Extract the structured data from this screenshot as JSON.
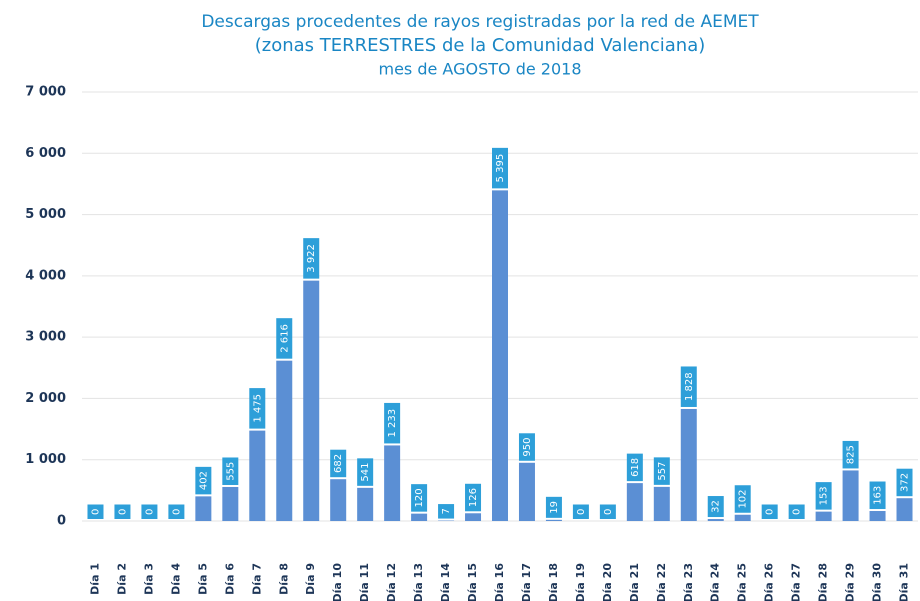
{
  "chart_data": {
    "type": "bar",
    "title": "Descargas procedentes de rayos registradas por la red de AEMET",
    "subtitle": [
      "(zonas TERRESTRES  de la Comunidad Valenciana)",
      "mes de AGOSTO de 2018"
    ],
    "categories": [
      "Día 1",
      "Día 2",
      "Día 3",
      "Día 4",
      "Día 5",
      "Día 6",
      "Día 7",
      "Día 8",
      "Día 9",
      "Día 10",
      "Día 11",
      "Día 12",
      "Día 13",
      "Día 14",
      "Día 15",
      "Día 16",
      "Día 17",
      "Día 18",
      "Día 19",
      "Día 20",
      "Día 21",
      "Día 22",
      "Día 23",
      "Día 24",
      "Día 25",
      "Día 26",
      "Día 27",
      "Día 28",
      "Día 29",
      "Día 30",
      "Día 31"
    ],
    "values": [
      0,
      0,
      0,
      0,
      402,
      555,
      1475,
      2616,
      3922,
      682,
      541,
      1233,
      120,
      7,
      126,
      5395,
      950,
      19,
      0,
      0,
      618,
      557,
      1828,
      32,
      102,
      0,
      0,
      153,
      825,
      163,
      372
    ],
    "value_labels": [
      "0",
      "0",
      "0",
      "0",
      "402",
      "555",
      "1 475",
      "2 616",
      "3 922",
      "682",
      "541",
      "1 233",
      "120",
      "7",
      "126",
      "5 395",
      "950",
      "19",
      "0",
      "0",
      "618",
      "557",
      "1 828",
      "32",
      "102",
      "0",
      "0",
      "153",
      "825",
      "163",
      "372"
    ],
    "color": "#5b8fd4",
    "label_color": "#2d9fd9",
    "ylim": [
      0,
      7000
    ],
    "yticks": [
      0,
      {
        "value": 1000,
        "label": "1 000"
      },
      {
        "value": 2000,
        "label": "2 000"
      },
      {
        "value": 3000,
        "label": "3 000"
      },
      {
        "value": 4000,
        "label": "4 000"
      },
      {
        "value": 5000,
        "label": "5 000"
      },
      {
        "value": 6000,
        "label": "6 000"
      },
      {
        "value": 7000,
        "label": "7 000"
      }
    ],
    "grid": true
  }
}
